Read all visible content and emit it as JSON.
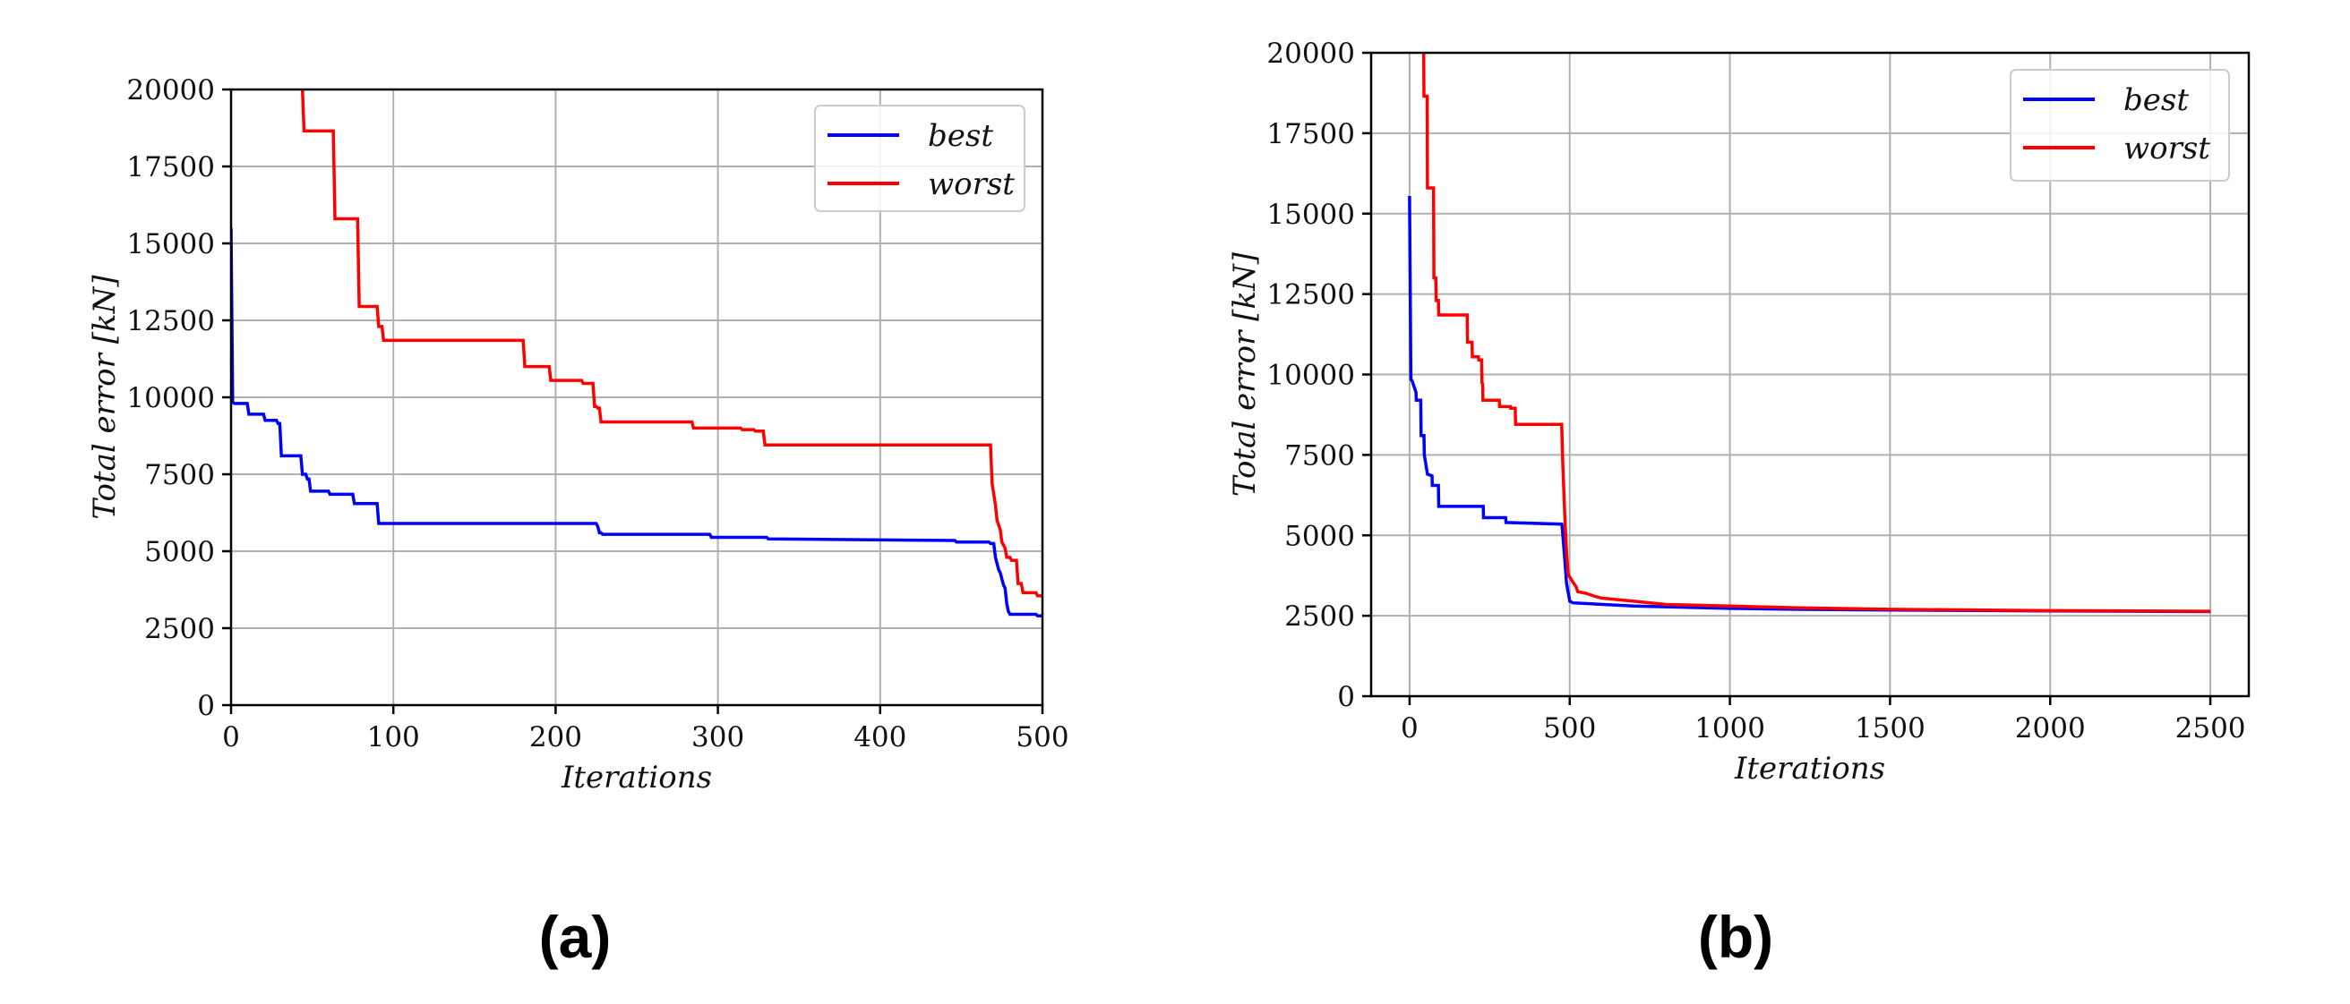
{
  "chart_data": [
    {
      "type": "line",
      "panel_label": "(a)",
      "xlabel": "Iterations",
      "ylabel": "Total error [kN]",
      "xlim": [
        0,
        500
      ],
      "ylim": [
        0,
        20000
      ],
      "xticks": [
        0,
        100,
        200,
        300,
        400,
        500
      ],
      "yticks": [
        0,
        2500,
        5000,
        7500,
        10000,
        12500,
        15000,
        17500,
        20000
      ],
      "grid": true,
      "legend": "top-right",
      "series": [
        {
          "name": "best",
          "color": "#0000ff",
          "x": [
            0,
            1,
            2,
            10,
            11,
            20,
            21,
            28,
            29,
            30,
            31,
            43,
            44,
            46,
            47,
            48,
            49,
            60,
            61,
            75,
            76,
            90,
            91,
            180,
            181,
            225,
            226,
            226.5,
            227,
            228,
            229,
            295,
            296,
            330,
            331,
            330.5,
            446,
            447,
            467,
            468,
            470,
            471,
            473,
            474,
            476,
            477,
            478,
            479,
            480,
            481,
            482,
            496,
            497,
            500
          ],
          "y": [
            15500,
            9850,
            9800,
            9800,
            9450,
            9450,
            9250,
            9250,
            9150,
            9150,
            8100,
            8100,
            7500,
            7500,
            7350,
            7350,
            6950,
            6950,
            6850,
            6850,
            6550,
            6550,
            5900,
            5900,
            5900,
            5900,
            5800,
            5700,
            5600,
            5600,
            5550,
            5550,
            5450,
            5450,
            5400,
            5400,
            5350,
            5300,
            5300,
            5250,
            5250,
            4800,
            4400,
            4300,
            3900,
            3800,
            3300,
            3050,
            2950,
            2950,
            2950,
            2950,
            2900,
            2900
          ]
        },
        {
          "name": "worst",
          "color": "#ff0000",
          "x": [
            44,
            44,
            45,
            63,
            64,
            78,
            79,
            90,
            91,
            93,
            94,
            180,
            181,
            196,
            197,
            216,
            217,
            223,
            224,
            225,
            226,
            227,
            228,
            284,
            285,
            314,
            315,
            322,
            323,
            328,
            329,
            330,
            331,
            468,
            469,
            471,
            472,
            474,
            475,
            477,
            478,
            480,
            481,
            484,
            485,
            487,
            488,
            490,
            491,
            496,
            497,
            500
          ],
          "y": [
            20000,
            20000,
            18650,
            18650,
            15800,
            15800,
            12950,
            12950,
            12300,
            12300,
            11850,
            11850,
            11000,
            11000,
            10550,
            10550,
            10450,
            10450,
            9700,
            9700,
            9650,
            9650,
            9200,
            9200,
            9000,
            9000,
            8950,
            8950,
            8900,
            8900,
            8450,
            8450,
            8450,
            8450,
            7200,
            6500,
            6000,
            5700,
            5300,
            5100,
            4800,
            4800,
            4700,
            4700,
            3950,
            3950,
            3650,
            3650,
            3650,
            3650,
            3550,
            3550
          ]
        }
      ]
    },
    {
      "type": "line",
      "panel_label": "(b)",
      "xlabel": "Iterations",
      "ylabel": "Total error [kN]",
      "xlim": [
        -120,
        2620
      ],
      "ylim": [
        0,
        20000
      ],
      "xticks": [
        0,
        500,
        1000,
        1500,
        2000,
        2500
      ],
      "yticks": [
        0,
        2500,
        5000,
        7500,
        10000,
        12500,
        15000,
        17500,
        20000
      ],
      "grid": true,
      "legend": "top-right",
      "series": [
        {
          "name": "best",
          "color": "#0000ff",
          "x": [
            0,
            4,
            8,
            20,
            21,
            35,
            36,
            45,
            46,
            55,
            56,
            70,
            71,
            90,
            91,
            230,
            231,
            300,
            301,
            475,
            476,
            485,
            490,
            500,
            510,
            700,
            800,
            1000,
            1200,
            1500,
            2000,
            2500
          ],
          "y": [
            15550,
            9850,
            9800,
            9450,
            9200,
            9200,
            8100,
            8100,
            7500,
            6950,
            6900,
            6850,
            6550,
            6550,
            5900,
            5900,
            5550,
            5550,
            5400,
            5350,
            5300,
            4200,
            3500,
            2950,
            2900,
            2800,
            2780,
            2730,
            2700,
            2680,
            2650,
            2630
          ]
        },
        {
          "name": "worst",
          "color": "#ff0000",
          "x": [
            44,
            45,
            55,
            56,
            75,
            76,
            82,
            83,
            90,
            91,
            180,
            181,
            195,
            196,
            215,
            216,
            225,
            226,
            228,
            229,
            280,
            281,
            315,
            316,
            330,
            331,
            475,
            478,
            485,
            490,
            495,
            500,
            510,
            520,
            525,
            550,
            580,
            600,
            700,
            800,
            1000,
            1200,
            1500,
            2000,
            2500
          ],
          "y": [
            20000,
            18650,
            18650,
            15800,
            15800,
            13000,
            13000,
            12300,
            12300,
            11850,
            11850,
            11000,
            11000,
            10550,
            10550,
            10450,
            10450,
            9750,
            9700,
            9200,
            9200,
            9000,
            9000,
            8950,
            8950,
            8450,
            8450,
            7300,
            5500,
            4500,
            3800,
            3700,
            3550,
            3400,
            3250,
            3200,
            3100,
            3050,
            2950,
            2850,
            2800,
            2750,
            2700,
            2660,
            2640
          ]
        }
      ]
    }
  ]
}
